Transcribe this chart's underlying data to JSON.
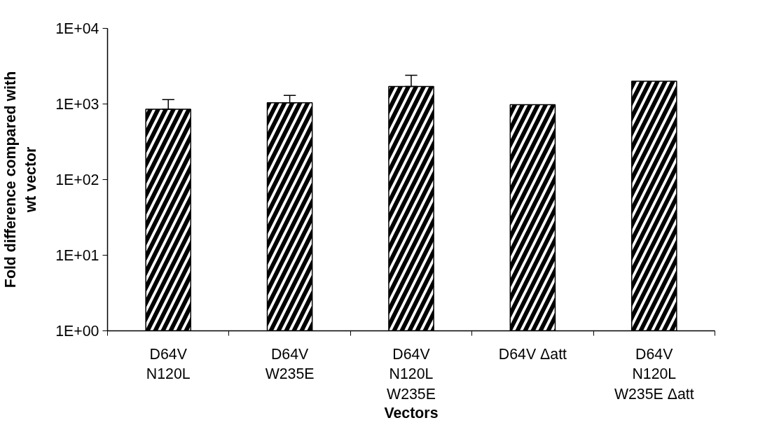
{
  "chart_data": {
    "type": "bar",
    "xlabel": "Vectors",
    "ylabel": "Fold difference compared with\nwt vector",
    "categories": [
      "D64V\nN120L",
      "D64V\nW235E",
      "D64V\nN120L\nW235E",
      "D64V Δatt",
      "D64V\nN120L\nW235E Δatt"
    ],
    "values": [
      850,
      1040,
      1700,
      980,
      2000
    ],
    "errors": [
      [
        850,
        1140
      ],
      [
        1040,
        1300
      ],
      [
        1700,
        2400
      ],
      null,
      null
    ],
    "color": "#000000",
    "log": true,
    "ylim": [
      1,
      10000
    ],
    "yticks": [
      {
        "value": 1,
        "label": "1E+00"
      },
      {
        "value": 10,
        "label": "1E+01"
      },
      {
        "value": 100,
        "label": "1E+02"
      },
      {
        "value": 1000,
        "label": "1E+03"
      },
      {
        "value": 10000,
        "label": "1E+04"
      }
    ],
    "grid": false
  }
}
